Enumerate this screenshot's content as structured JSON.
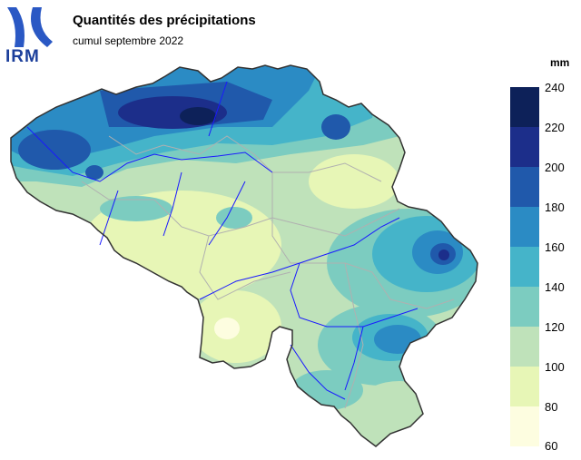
{
  "header": {
    "logo_text": "IRM",
    "title": "Quantités des précipitations",
    "subtitle": "cumul septembre 2022"
  },
  "legend": {
    "unit": "mm",
    "classes": [
      {
        "label": "240",
        "color": "#0d2159"
      },
      {
        "label": "220",
        "color": "#1c2e8a"
      },
      {
        "label": "200",
        "color": "#2059ab"
      },
      {
        "label": "180",
        "color": "#2b8bc4"
      },
      {
        "label": "160",
        "color": "#45b4c9"
      },
      {
        "label": "140",
        "color": "#7cccc0"
      },
      {
        "label": "120",
        "color": "#bfe2ba"
      },
      {
        "label": "100",
        "color": "#e7f6b6"
      },
      {
        "label": "80",
        "color": "#fdfde0"
      }
    ],
    "bottom_label": "60"
  },
  "colors": {
    "country_border": "#333333",
    "province_border": "#b0b0b0",
    "rivers": "#1a1aff"
  }
}
